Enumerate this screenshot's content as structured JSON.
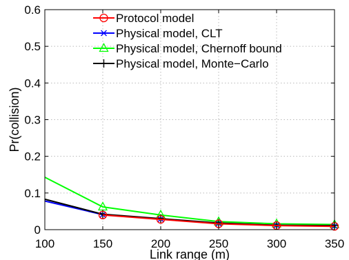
{
  "chart_data": {
    "type": "line",
    "xlabel": "Link range (m)",
    "ylabel": "Pr(collision)",
    "xlim": [
      100,
      350
    ],
    "ylim": [
      0,
      0.6
    ],
    "xticks": [
      100,
      150,
      200,
      250,
      300,
      350
    ],
    "yticks": [
      0,
      0.1,
      0.2,
      0.3,
      0.4,
      0.5,
      0.6
    ],
    "x_tick_labels": [
      "100",
      "150",
      "200",
      "250",
      "300",
      "350"
    ],
    "y_tick_labels": [
      "0",
      "0.1",
      "0.2",
      "0.3",
      "0.4",
      "0.5",
      "0.6"
    ],
    "grid": true,
    "legend_position": "top-right",
    "series": [
      {
        "name": "Protocol model",
        "color": "#ff0000",
        "marker": "circle",
        "x": [
          150,
          200,
          250,
          300,
          350
        ],
        "y": [
          0.04,
          0.028,
          0.016,
          0.011,
          0.009
        ]
      },
      {
        "name": "Physical model, CLT",
        "color": "#0000ff",
        "marker": "x",
        "x": [
          100,
          150,
          200,
          250,
          300,
          350
        ],
        "y": [
          0.078,
          0.041,
          0.029,
          0.017,
          0.012,
          0.01
        ]
      },
      {
        "name": "Physical model, Chernoff bound",
        "color": "#00ff00",
        "marker": "triangle",
        "x": [
          100,
          150,
          200,
          250,
          300,
          350
        ],
        "y": [
          0.143,
          0.062,
          0.04,
          0.022,
          0.016,
          0.014
        ]
      },
      {
        "name": "Physical model, Monte−Carlo",
        "color": "#000000",
        "marker": "plus",
        "x": [
          100,
          150,
          200,
          250,
          300,
          350
        ],
        "y": [
          0.083,
          0.042,
          0.03,
          0.018,
          0.012,
          0.011
        ]
      }
    ]
  }
}
